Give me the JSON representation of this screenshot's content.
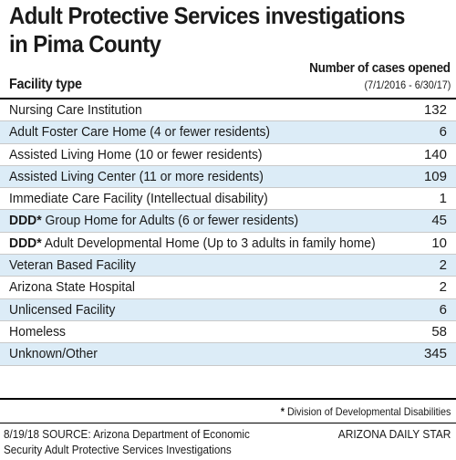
{
  "title_line1": "Adult Protective Services investigations",
  "title_line2": "in Pima County",
  "column_facility": "Facility type",
  "column_cases": "Number of cases opened",
  "column_range": "(7/1/2016 - 6/30/17)",
  "chart_data": {
    "type": "table",
    "title": "Adult Protective Services investigations in Pima County",
    "columns": [
      "Facility type",
      "Number of cases opened"
    ],
    "rows": [
      {
        "label": "Nursing Care Institution",
        "value": "132"
      },
      {
        "label": "Adult Foster Care Home (4 or fewer residents)",
        "value": "6"
      },
      {
        "label": "Assisted Living Home (10 or fewer residents)",
        "value": "140"
      },
      {
        "label": "Assisted Living Center (11 or more residents)",
        "value": "109"
      },
      {
        "label": "Immediate Care Facility (Intellectual disability)",
        "value": "1"
      },
      {
        "label": "DDD* Group Home for Adults (6 or fewer residents)",
        "value": "45"
      },
      {
        "label": "DDD* Adult Developmental Home (Up to 3 adults in family home)",
        "value": "10"
      },
      {
        "label": "Veteran Based Facility",
        "value": "2"
      },
      {
        "label": "Arizona State Hospital",
        "value": "2"
      },
      {
        "label": "Unlicensed Facility",
        "value": "6"
      },
      {
        "label": "Homeless",
        "value": "58"
      },
      {
        "label": "Unknown/Other",
        "value": "345"
      }
    ]
  },
  "footnote": "* Division of Developmental Disabilities",
  "source": "8/19/18 SOURCE: Arizona Department of Economic Security Adult Protective Services Investigations",
  "credit": "ARIZONA DAILY STAR",
  "colors": {
    "row_alt": "#dcecf7",
    "rule": "#000000",
    "row_divider": "#c9c9c9"
  }
}
